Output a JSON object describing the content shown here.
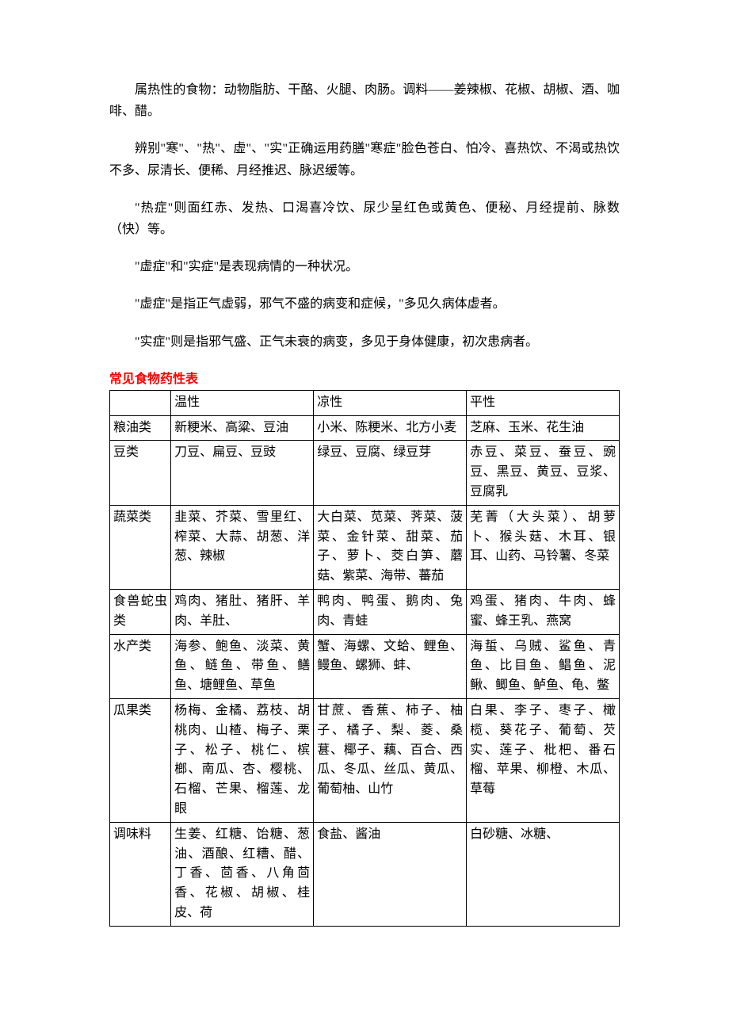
{
  "paragraphs": {
    "p1": "属热性的食物：动物脂肪、干酪、火腿、肉肠。调料——姜辣椒、花椒、胡椒、酒、咖啡、醋。",
    "p2": "辨别\"寒\"、\"热\"、虚\"、\"实\"正确运用药膳\"寒症\"脸色苍白、怕冷、喜热饮、不渴或热饮不多、尿清长、便稀、月经推迟、脉迟缓等。",
    "p3": "\"热症\"则面红赤、发热、口渴喜冷饮、尿少呈红色或黄色、便秘、月经提前、脉数（快）等。",
    "p4": "\"虚症\"和\"实症\"是表现病情的一种状况。",
    "p5": "\"虚症\"是指正气虚弱，邪气不盛的病变和症候，\"多见久病体虚者。",
    "p6": "\"实症\"则是指邪气盛、正气未衰的病变，多见于身体健康，初次患病者。"
  },
  "section_title": "常见食物药性表",
  "table": {
    "border_color": "#000000",
    "background_color": "#ffffff",
    "text_color": "#000000",
    "title_color": "#ff0000",
    "fontsize": 16,
    "header": [
      "",
      "温性",
      "凉性",
      "平性"
    ],
    "rows": [
      {
        "category": "粮油类",
        "warm": "新粳米、高粱、豆油",
        "cool": "小米、陈粳米、北方小麦",
        "neutral": "芝麻、玉米、花生油"
      },
      {
        "category": "豆类",
        "warm": "刀豆、扁豆、豆豉",
        "cool": "绿豆、豆腐、绿豆芽",
        "neutral": "赤豆、菜豆、蚕豆、豌豆、黑豆、黄豆、豆浆、豆腐乳"
      },
      {
        "category": "蔬菜类",
        "warm": "韭菜、芥菜、雪里红、榨菜、大蒜、胡葱、洋葱、辣椒",
        "cool": "大白菜、苋菜、荠菜、菠菜、金针菜、甜菜、茄子、萝卜、茭白笋、蘑菇、紫菜、海带、蕃茄",
        "neutral": "芜菁（大头菜）、胡萝卜、猴头菇、木耳、银耳、山药、马铃薯、冬菜"
      },
      {
        "category": "食兽蛇虫类",
        "warm": "鸡肉、猪肚、猪肝、羊肉、羊肚、",
        "cool": "鸭肉、鸭蛋、鹅肉、兔肉、青蛙",
        "neutral": "鸡蛋、猪肉、牛肉、蜂蜜、蜂王乳、燕窝"
      },
      {
        "category": "水产类",
        "warm": "海参、鲍鱼、淡菜、黄鱼、鲢鱼、带鱼、鳝鱼、塘鲤鱼、草鱼",
        "cool": "蟹、海螺、文蛤、鲤鱼、鳗鱼、螺狮、蚌、",
        "neutral": "海蜇、乌贼、鲨鱼、青鱼、比目鱼、鲳鱼、泥鳅、鲫鱼、鲈鱼、龟、鳖"
      },
      {
        "category": "瓜果类",
        "warm": "杨梅、金橘、荔枝、胡桃肉、山楂、梅子、栗子、松子、桃仁、槟榔、南瓜、杏、樱桃、石榴、芒果、榴莲、龙眼",
        "cool": "甘蔗、香蕉、柿子、柚子、橘子、梨、菱、桑葚、椰子、藕、百合、西瓜、冬瓜、丝瓜、黄瓜、葡萄柚、山竹",
        "neutral": "白果、李子、枣子、橄榄、葵花子、葡萄、芡实、莲子、枇杷、番石榴、苹果、柳橙、木瓜、草莓"
      },
      {
        "category": "调味料",
        "warm": "生姜、红糖、饴糖、葱油、酒酿、红糟、醋、丁香、茴香、八角茴香、花椒、胡椒、桂皮、荷",
        "cool": "食盐、酱油",
        "neutral": "白砂糖、冰糖、"
      }
    ]
  }
}
